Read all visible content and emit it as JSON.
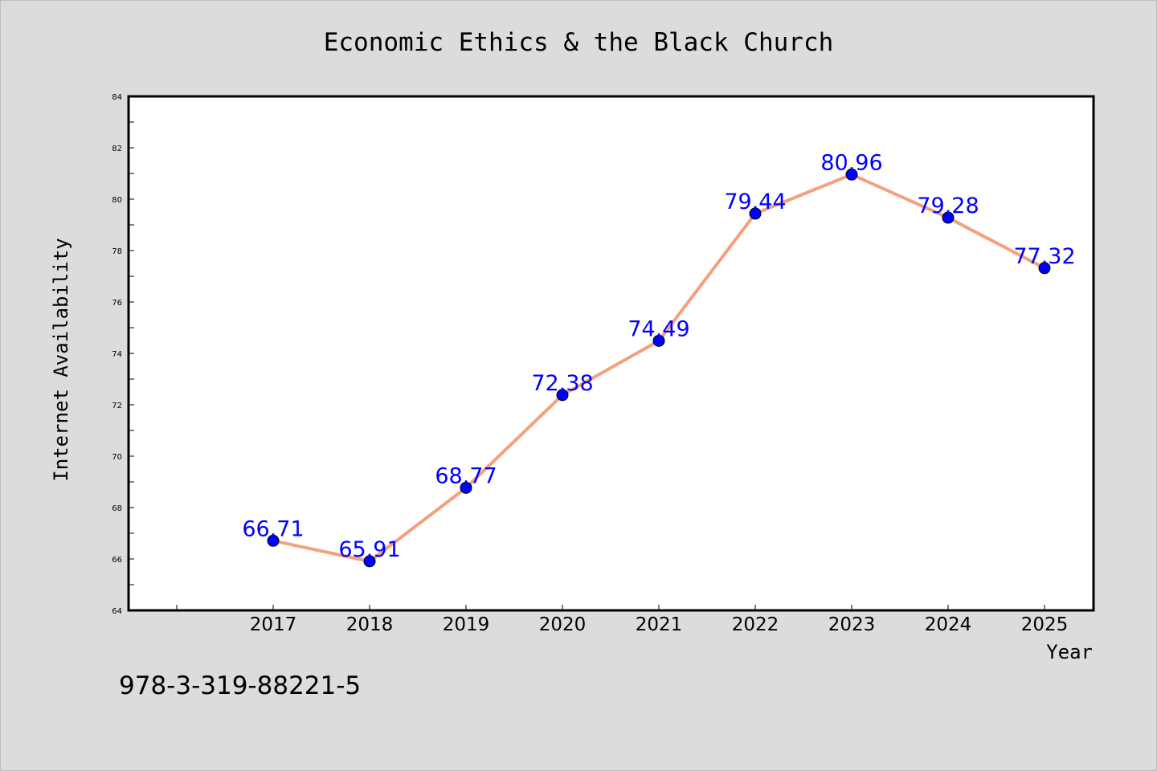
{
  "chart_data": {
    "type": "line",
    "title": "Economic Ethics & the Black Church",
    "xlabel": "Year",
    "ylabel": "Internet Availability",
    "x": [
      "2017",
      "2018",
      "2019",
      "2020",
      "2021",
      "2022",
      "2023",
      "2024",
      "2025"
    ],
    "series": [
      {
        "values": [
          66.71,
          65.91,
          68.77,
          72.38,
          74.49,
          79.44,
          80.96,
          79.28,
          77.32
        ],
        "data_labels": [
          "66.71",
          "65.91",
          "68.77",
          "72.38",
          "74.49",
          "79.44",
          "80.96",
          "79.28",
          "77.32"
        ]
      }
    ],
    "ylim": [
      64,
      84
    ],
    "y_ticks": [
      "64",
      "66",
      "68",
      "70",
      "72",
      "74",
      "76",
      "78",
      "80",
      "82",
      "84"
    ],
    "grid": false,
    "legend": "none",
    "colors": {
      "line": "#f4a07a",
      "marker": "#0000ff",
      "label": "#0000ff",
      "background": "#dcdcdc",
      "plot_background": "#ffffff"
    }
  },
  "footnote": "978-3-319-88221-5"
}
